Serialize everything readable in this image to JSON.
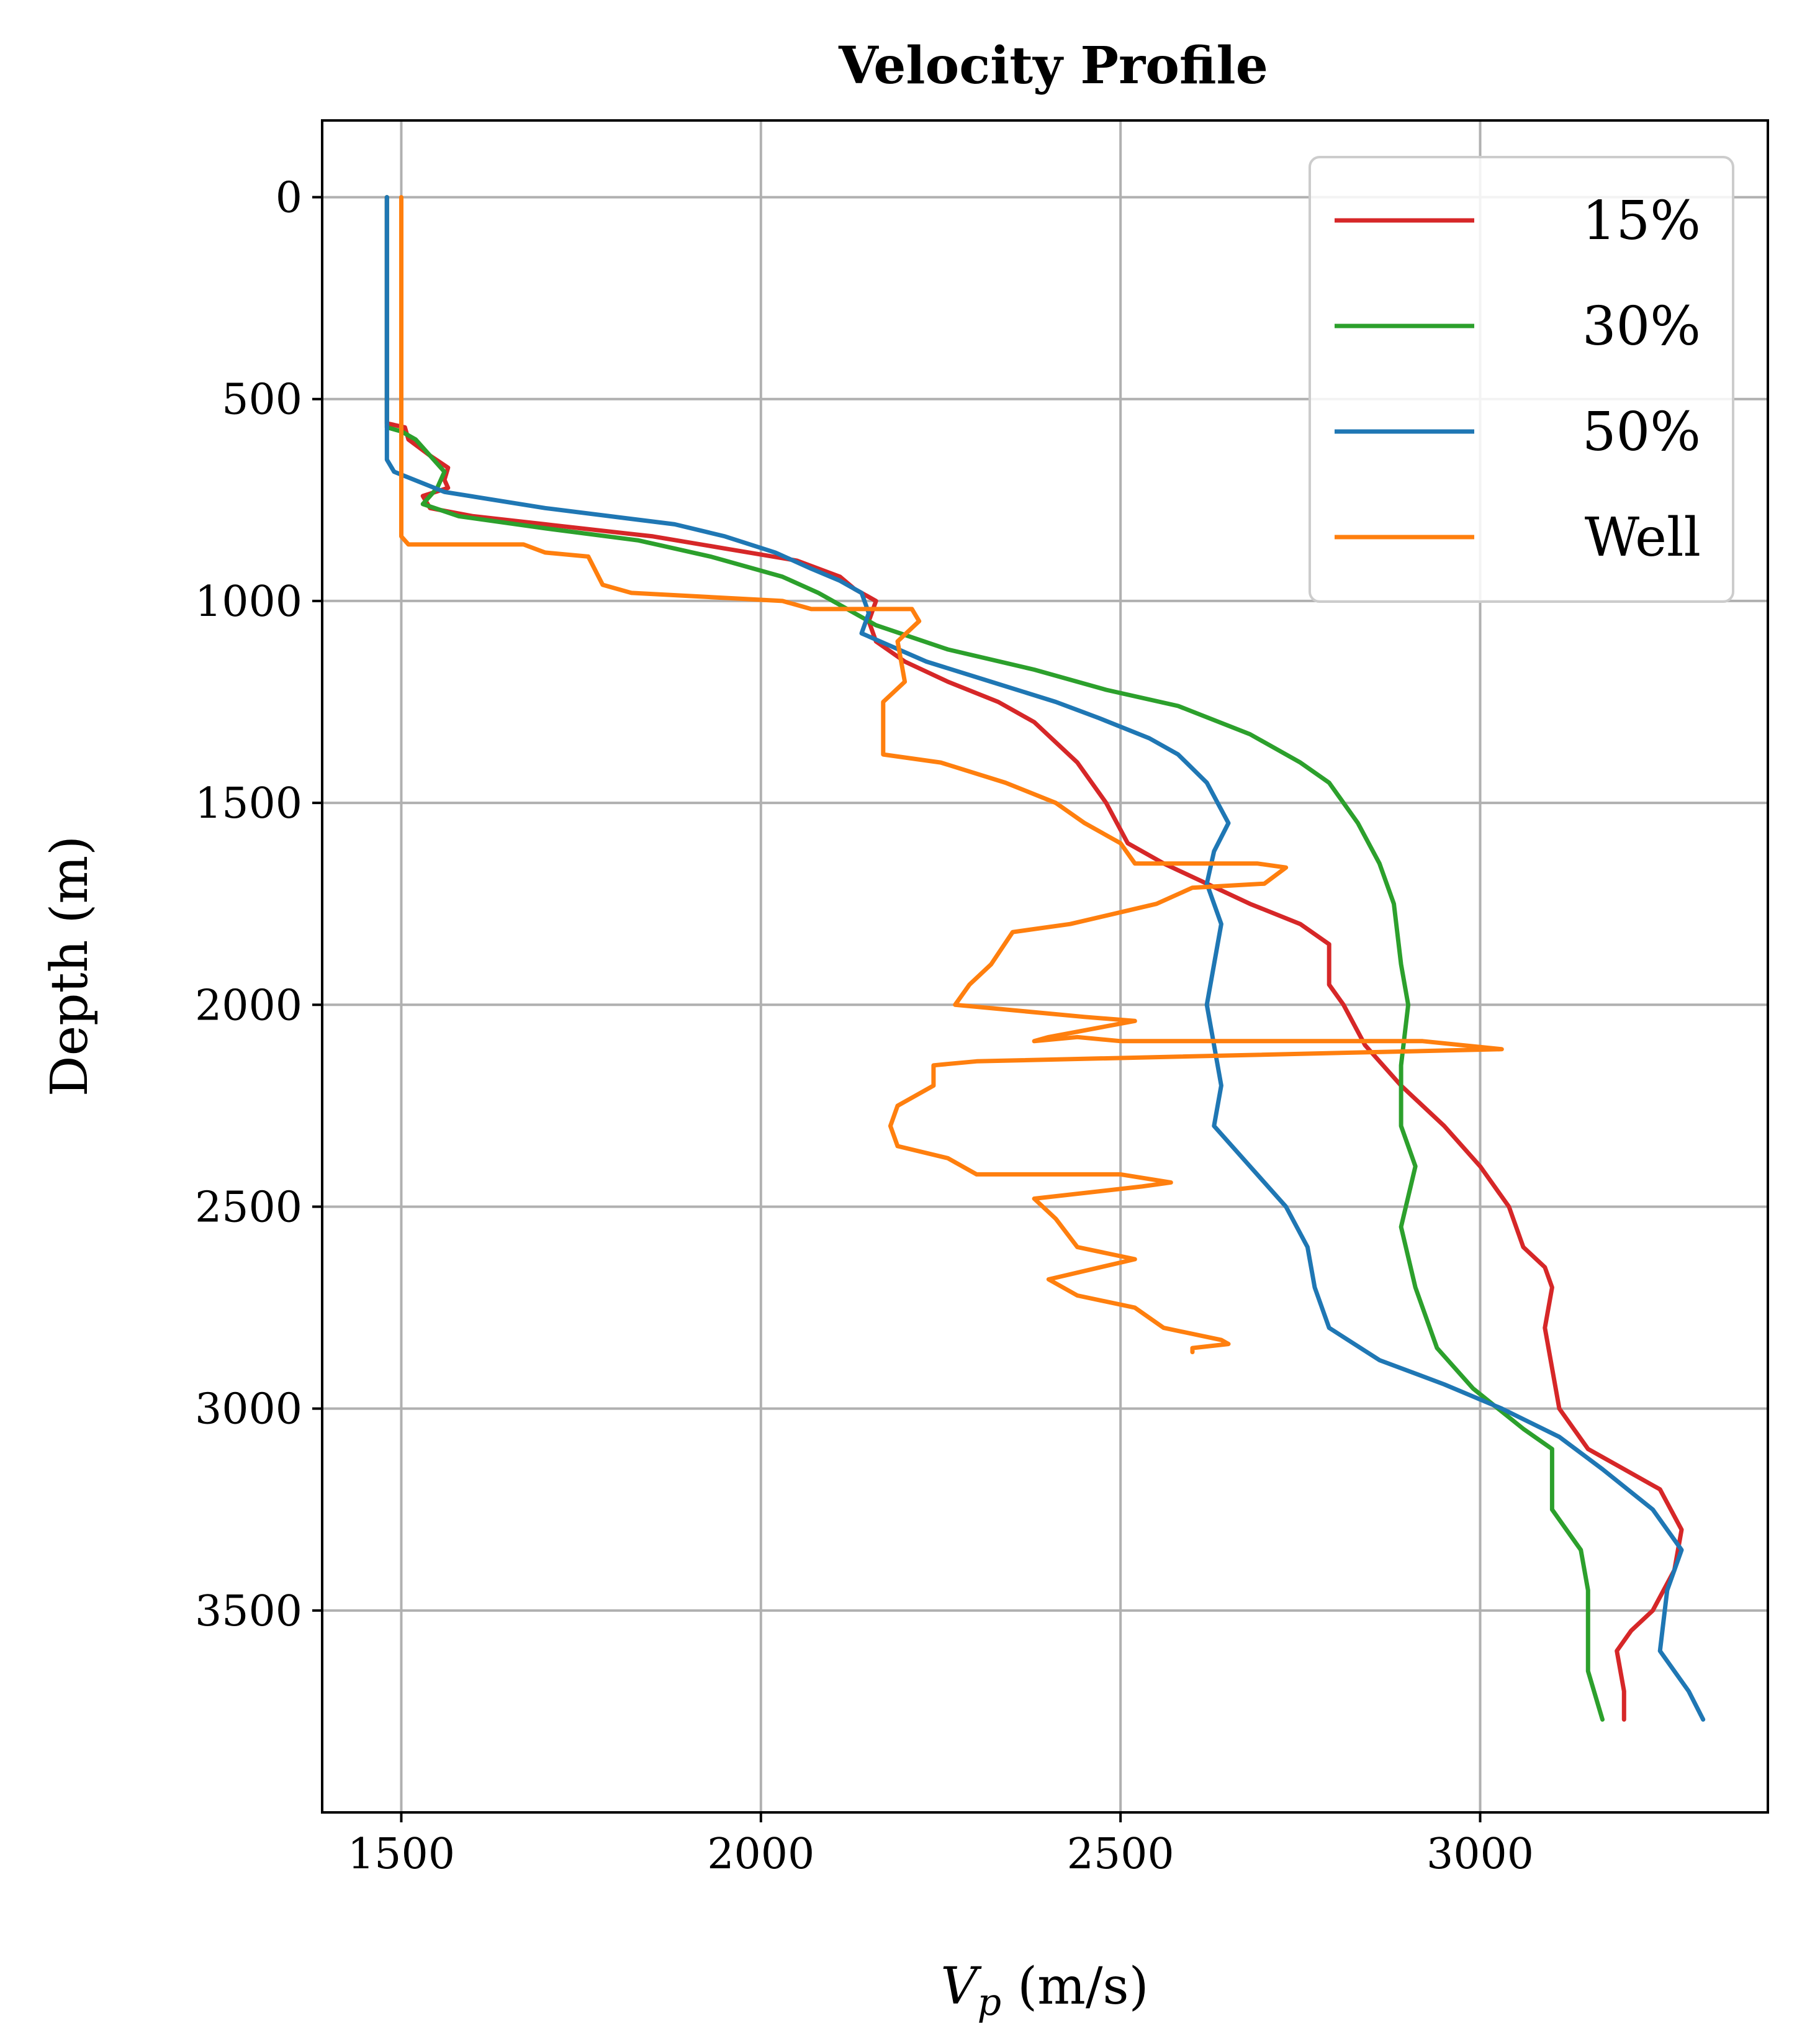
{
  "chart_data": {
    "type": "line",
    "title": "Velocity Profile",
    "xlabel_main": "V",
    "xlabel_sub": "p",
    "xlabel_unit": " (m/s)",
    "ylabel": "Depth (m)",
    "xlim": [
      1390,
      3400
    ],
    "ylim": [
      4000,
      -190
    ],
    "y_inverted": true,
    "grid": true,
    "legend_position": "top-right",
    "xticks": [
      1500,
      2000,
      2500,
      3000
    ],
    "yticks": [
      0,
      500,
      1000,
      1500,
      2000,
      2500,
      3000,
      3500
    ],
    "series": [
      {
        "name": "15%",
        "color": "#d62728",
        "points": [
          [
            1480,
            0
          ],
          [
            1480,
            300
          ],
          [
            1480,
            560
          ],
          [
            1505,
            570
          ],
          [
            1510,
            600
          ],
          [
            1540,
            640
          ],
          [
            1565,
            670
          ],
          [
            1560,
            700
          ],
          [
            1565,
            720
          ],
          [
            1530,
            740
          ],
          [
            1540,
            770
          ],
          [
            1600,
            790
          ],
          [
            1700,
            810
          ],
          [
            1850,
            840
          ],
          [
            1950,
            870
          ],
          [
            2050,
            900
          ],
          [
            2110,
            940
          ],
          [
            2130,
            970
          ],
          [
            2160,
            1000
          ],
          [
            2150,
            1050
          ],
          [
            2160,
            1100
          ],
          [
            2200,
            1150
          ],
          [
            2260,
            1200
          ],
          [
            2330,
            1250
          ],
          [
            2380,
            1300
          ],
          [
            2440,
            1400
          ],
          [
            2480,
            1500
          ],
          [
            2510,
            1600
          ],
          [
            2560,
            1650
          ],
          [
            2620,
            1700
          ],
          [
            2680,
            1750
          ],
          [
            2750,
            1800
          ],
          [
            2790,
            1850
          ],
          [
            2790,
            1950
          ],
          [
            2810,
            2000
          ],
          [
            2840,
            2100
          ],
          [
            2890,
            2200
          ],
          [
            2950,
            2300
          ],
          [
            3000,
            2400
          ],
          [
            3040,
            2500
          ],
          [
            3060,
            2600
          ],
          [
            3090,
            2650
          ],
          [
            3100,
            2700
          ],
          [
            3090,
            2800
          ],
          [
            3110,
            3000
          ],
          [
            3150,
            3100
          ],
          [
            3200,
            3150
          ],
          [
            3250,
            3200
          ],
          [
            3280,
            3300
          ],
          [
            3270,
            3400
          ],
          [
            3240,
            3500
          ],
          [
            3210,
            3550
          ],
          [
            3190,
            3600
          ],
          [
            3200,
            3700
          ],
          [
            3200,
            3770
          ]
        ]
      },
      {
        "name": "30%",
        "color": "#2ca02c",
        "points": [
          [
            1480,
            0
          ],
          [
            1480,
            300
          ],
          [
            1480,
            570
          ],
          [
            1500,
            580
          ],
          [
            1520,
            600
          ],
          [
            1540,
            640
          ],
          [
            1560,
            680
          ],
          [
            1550,
            720
          ],
          [
            1530,
            760
          ],
          [
            1580,
            790
          ],
          [
            1700,
            820
          ],
          [
            1830,
            850
          ],
          [
            1930,
            890
          ],
          [
            2030,
            940
          ],
          [
            2080,
            980
          ],
          [
            2120,
            1020
          ],
          [
            2160,
            1060
          ],
          [
            2260,
            1120
          ],
          [
            2380,
            1170
          ],
          [
            2480,
            1220
          ],
          [
            2580,
            1260
          ],
          [
            2680,
            1330
          ],
          [
            2750,
            1400
          ],
          [
            2790,
            1450
          ],
          [
            2830,
            1550
          ],
          [
            2860,
            1650
          ],
          [
            2880,
            1750
          ],
          [
            2890,
            1900
          ],
          [
            2900,
            2000
          ],
          [
            2890,
            2150
          ],
          [
            2890,
            2300
          ],
          [
            2910,
            2400
          ],
          [
            2890,
            2550
          ],
          [
            2910,
            2700
          ],
          [
            2940,
            2850
          ],
          [
            2990,
            2950
          ],
          [
            3060,
            3050
          ],
          [
            3100,
            3100
          ],
          [
            3100,
            3250
          ],
          [
            3140,
            3350
          ],
          [
            3150,
            3450
          ],
          [
            3150,
            3650
          ],
          [
            3170,
            3770
          ]
        ]
      },
      {
        "name": "50%",
        "color": "#1f77b4",
        "points": [
          [
            1480,
            0
          ],
          [
            1480,
            300
          ],
          [
            1480,
            650
          ],
          [
            1490,
            680
          ],
          [
            1560,
            730
          ],
          [
            1700,
            770
          ],
          [
            1880,
            810
          ],
          [
            1950,
            840
          ],
          [
            2020,
            880
          ],
          [
            2070,
            920
          ],
          [
            2110,
            950
          ],
          [
            2140,
            980
          ],
          [
            2150,
            1030
          ],
          [
            2140,
            1080
          ],
          [
            2230,
            1150
          ],
          [
            2320,
            1200
          ],
          [
            2410,
            1250
          ],
          [
            2470,
            1290
          ],
          [
            2540,
            1340
          ],
          [
            2580,
            1380
          ],
          [
            2620,
            1450
          ],
          [
            2650,
            1550
          ],
          [
            2630,
            1620
          ],
          [
            2620,
            1700
          ],
          [
            2640,
            1800
          ],
          [
            2630,
            1900
          ],
          [
            2620,
            2000
          ],
          [
            2630,
            2100
          ],
          [
            2640,
            2200
          ],
          [
            2630,
            2300
          ],
          [
            2680,
            2400
          ],
          [
            2730,
            2500
          ],
          [
            2760,
            2600
          ],
          [
            2770,
            2700
          ],
          [
            2790,
            2800
          ],
          [
            2860,
            2880
          ],
          [
            2950,
            2940
          ],
          [
            3030,
            3000
          ],
          [
            3110,
            3070
          ],
          [
            3170,
            3150
          ],
          [
            3240,
            3250
          ],
          [
            3280,
            3350
          ],
          [
            3260,
            3450
          ],
          [
            3250,
            3600
          ],
          [
            3290,
            3700
          ],
          [
            3310,
            3770
          ]
        ]
      },
      {
        "name": "Well",
        "color": "#ff7f0e",
        "points": [
          [
            1500,
            0
          ],
          [
            1500,
            840
          ],
          [
            1510,
            860
          ],
          [
            1670,
            860
          ],
          [
            1700,
            880
          ],
          [
            1760,
            890
          ],
          [
            1780,
            960
          ],
          [
            1820,
            980
          ],
          [
            2030,
            1000
          ],
          [
            2070,
            1020
          ],
          [
            2210,
            1020
          ],
          [
            2220,
            1050
          ],
          [
            2190,
            1100
          ],
          [
            2200,
            1200
          ],
          [
            2170,
            1250
          ],
          [
            2170,
            1380
          ],
          [
            2250,
            1400
          ],
          [
            2340,
            1450
          ],
          [
            2410,
            1500
          ],
          [
            2450,
            1550
          ],
          [
            2500,
            1600
          ],
          [
            2520,
            1650
          ],
          [
            2690,
            1650
          ],
          [
            2730,
            1660
          ],
          [
            2700,
            1700
          ],
          [
            2600,
            1710
          ],
          [
            2550,
            1750
          ],
          [
            2430,
            1800
          ],
          [
            2350,
            1820
          ],
          [
            2320,
            1900
          ],
          [
            2290,
            1950
          ],
          [
            2270,
            2000
          ],
          [
            2450,
            2030
          ],
          [
            2520,
            2040
          ],
          [
            2400,
            2080
          ],
          [
            2380,
            2090
          ],
          [
            2440,
            2080
          ],
          [
            2500,
            2090
          ],
          [
            2920,
            2090
          ],
          [
            3030,
            2110
          ],
          [
            2300,
            2140
          ],
          [
            2240,
            2150
          ],
          [
            2240,
            2200
          ],
          [
            2190,
            2250
          ],
          [
            2180,
            2300
          ],
          [
            2190,
            2350
          ],
          [
            2260,
            2380
          ],
          [
            2300,
            2420
          ],
          [
            2500,
            2420
          ],
          [
            2570,
            2440
          ],
          [
            2530,
            2450
          ],
          [
            2380,
            2480
          ],
          [
            2410,
            2530
          ],
          [
            2440,
            2600
          ],
          [
            2520,
            2630
          ],
          [
            2400,
            2680
          ],
          [
            2440,
            2720
          ],
          [
            2520,
            2750
          ],
          [
            2560,
            2800
          ],
          [
            2640,
            2830
          ],
          [
            2650,
            2840
          ],
          [
            2600,
            2850
          ],
          [
            2600,
            2860
          ]
        ]
      }
    ]
  }
}
